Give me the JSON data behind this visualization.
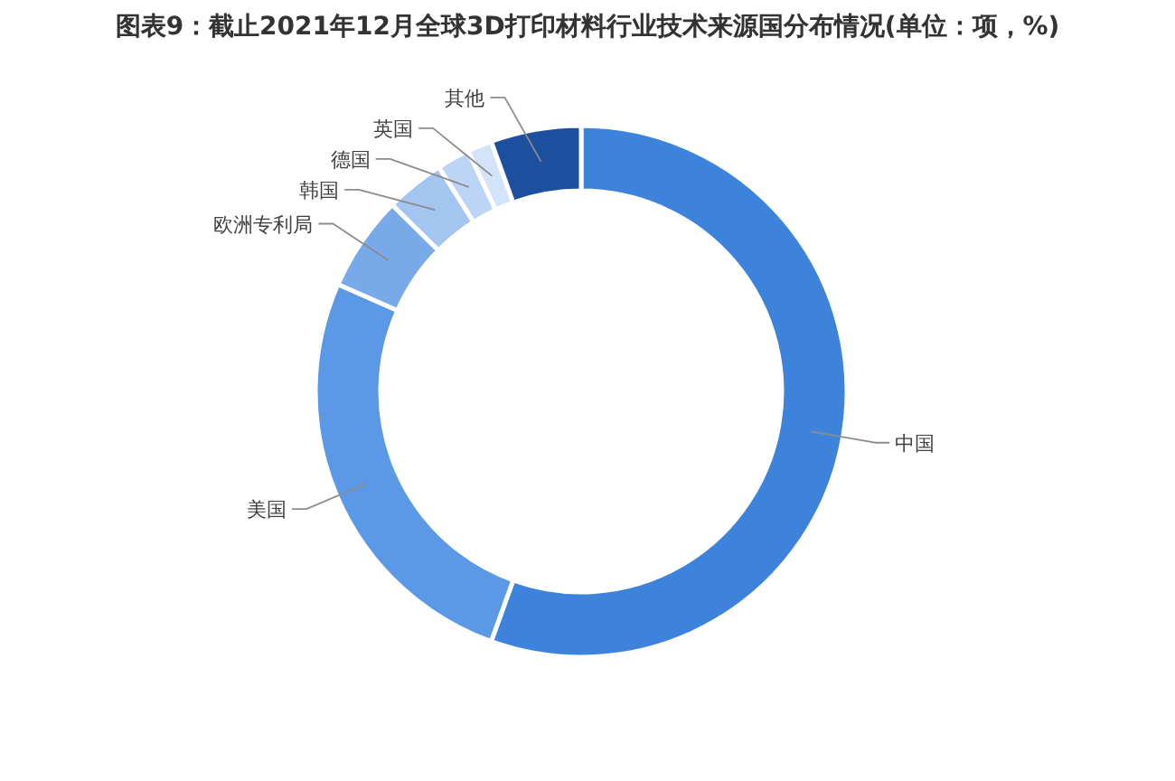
{
  "chart_data": {
    "type": "donut",
    "title": "图表9：截止2021年12月全球3D打印材料行业技术来源国分布情况(单位：项，%)",
    "categories": [
      "中国",
      "美国",
      "欧洲专利局",
      "韩国",
      "德国",
      "英国",
      "其他"
    ],
    "values": [
      55.5,
      26.1,
      5.8,
      3.6,
      2.0,
      1.5,
      5.5
    ],
    "colors": [
      "#3d83dc",
      "#5b98e6",
      "#78a9e9",
      "#a5c5f1",
      "#bcd4f5",
      "#d3e3f9",
      "#1d4f9f"
    ]
  }
}
